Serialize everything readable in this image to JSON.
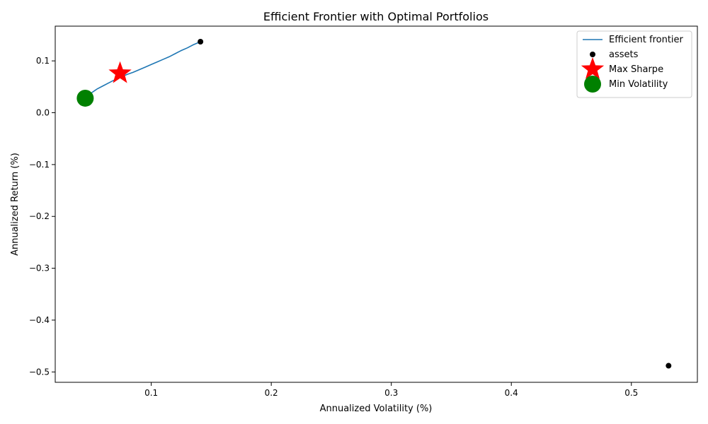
{
  "chart_data": {
    "type": "scatter",
    "title": "Efficient Frontier with Optimal Portfolios",
    "xlabel": "Annualized Volatility (%)",
    "ylabel": "Annualized Return (%)",
    "xlim": [
      0.02,
      0.555
    ],
    "ylim": [
      -0.52,
      0.167
    ],
    "xticks": [
      0.1,
      0.2,
      0.3,
      0.4,
      0.5
    ],
    "xtick_labels": [
      "0.1",
      "0.2",
      "0.3",
      "0.4",
      "0.5"
    ],
    "yticks": [
      0.1,
      0.0,
      -0.1,
      -0.2,
      -0.3,
      -0.4,
      -0.5
    ],
    "ytick_labels": [
      "0.1",
      "0.0",
      "−0.1",
      "−0.2",
      "−0.3",
      "−0.4",
      "−0.5"
    ],
    "grid": false,
    "legend_position": "top-right",
    "series": [
      {
        "name": "Efficient frontier",
        "kind": "line",
        "color": "#1f77b4",
        "points": [
          [
            0.048,
            0.03
          ],
          [
            0.05,
            0.038
          ],
          [
            0.055,
            0.046
          ],
          [
            0.06,
            0.052
          ],
          [
            0.065,
            0.058
          ],
          [
            0.07,
            0.064
          ],
          [
            0.075,
            0.069
          ],
          [
            0.08,
            0.074
          ],
          [
            0.085,
            0.078
          ],
          [
            0.09,
            0.083
          ],
          [
            0.095,
            0.088
          ],
          [
            0.1,
            0.093
          ],
          [
            0.105,
            0.098
          ],
          [
            0.11,
            0.103
          ],
          [
            0.115,
            0.108
          ],
          [
            0.12,
            0.114
          ],
          [
            0.125,
            0.12
          ],
          [
            0.13,
            0.125
          ],
          [
            0.135,
            0.131
          ],
          [
            0.141,
            0.137
          ]
        ]
      },
      {
        "name": "assets",
        "kind": "scatter",
        "marker": "circle",
        "color": "#000000",
        "points": [
          [
            0.141,
            0.137
          ],
          [
            0.531,
            -0.488
          ]
        ]
      },
      {
        "name": "Max Sharpe",
        "kind": "scatter",
        "marker": "star",
        "color": "#ff0000",
        "points": [
          [
            0.074,
            0.076
          ]
        ]
      },
      {
        "name": "Min Volatility",
        "kind": "scatter",
        "marker": "circle-large",
        "color": "#008000",
        "points": [
          [
            0.045,
            0.028
          ]
        ]
      }
    ]
  }
}
